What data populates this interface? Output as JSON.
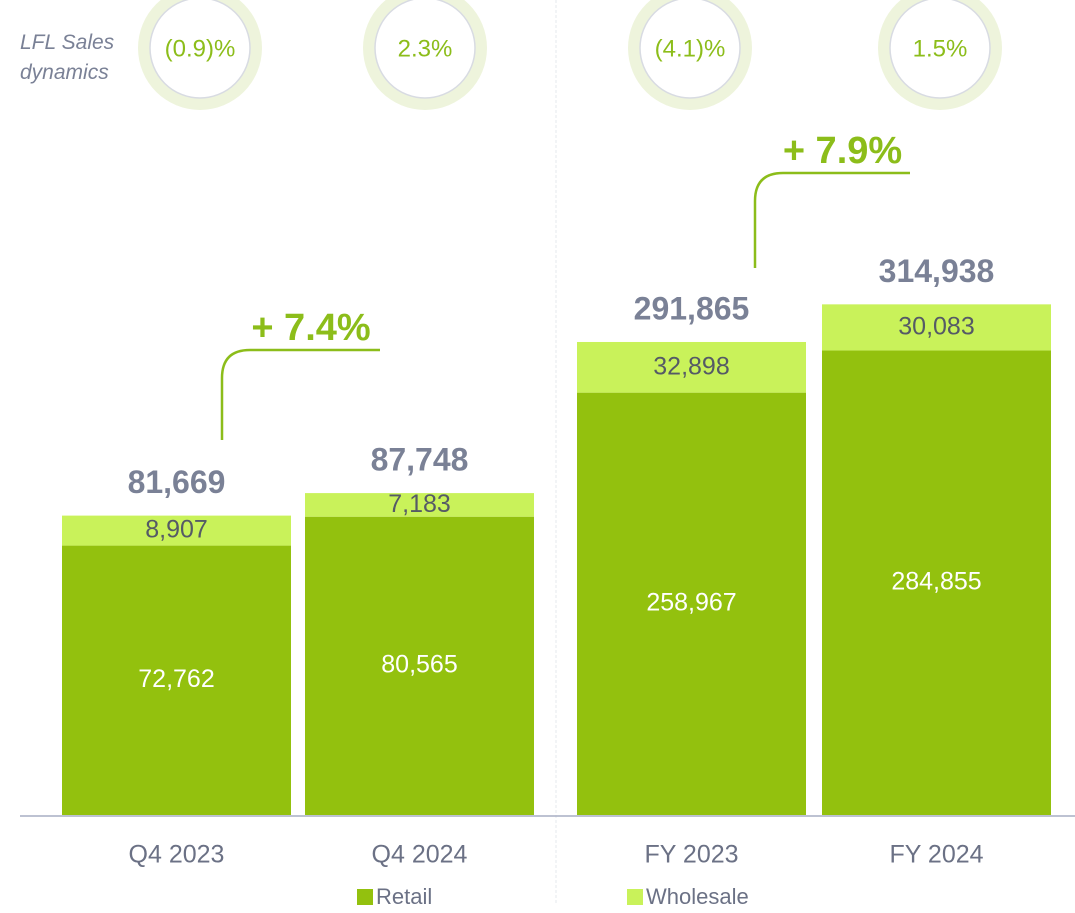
{
  "lfl_title": "LFL Sales dynamics",
  "chart_data": [
    {
      "type": "bar",
      "stacked": true,
      "categories": [
        "Q4 2023",
        "Q4 2024"
      ],
      "ylim": [
        0,
        185000
      ],
      "series": [
        {
          "name": "Retail",
          "color": "#93c10e",
          "values": [
            72762,
            80565
          ],
          "value_labels": [
            "72,762",
            "80,565"
          ]
        },
        {
          "name": "Wholesale",
          "color": "#c9f25a",
          "values": [
            8907,
            7183
          ],
          "value_labels": [
            "8,907",
            "7,183"
          ]
        }
      ],
      "totals": [
        81669,
        87748
      ],
      "total_labels": [
        "81,669",
        "87,748"
      ],
      "lfl": [
        {
          "value": -0.9,
          "label": "(0.9)%"
        },
        {
          "value": 2.3,
          "label": "2.3%"
        }
      ],
      "growth": {
        "value": 7.4,
        "label": "+ 7.4%"
      }
    },
    {
      "type": "bar",
      "stacked": true,
      "categories": [
        "FY 2023",
        "FY 2024"
      ],
      "ylim": [
        0,
        420000
      ],
      "series": [
        {
          "color": "#93c10e",
          "values": [
            258967,
            284855
          ],
          "value_labels": [
            "258,967",
            "284,855"
          ]
        },
        {
          "color": "#c9f25a",
          "values": [
            32898,
            30083
          ],
          "value_labels": [
            "32,898",
            "30,083"
          ]
        }
      ],
      "totals": [
        291865,
        314938
      ],
      "total_labels": [
        "291,865",
        "314,938"
      ],
      "lfl": [
        {
          "value": -4.1,
          "label": "(4.1)%"
        },
        {
          "value": 1.5,
          "label": "1.5%"
        }
      ],
      "growth": {
        "value": 7.9,
        "label": "+ 7.9%"
      }
    }
  ]
}
